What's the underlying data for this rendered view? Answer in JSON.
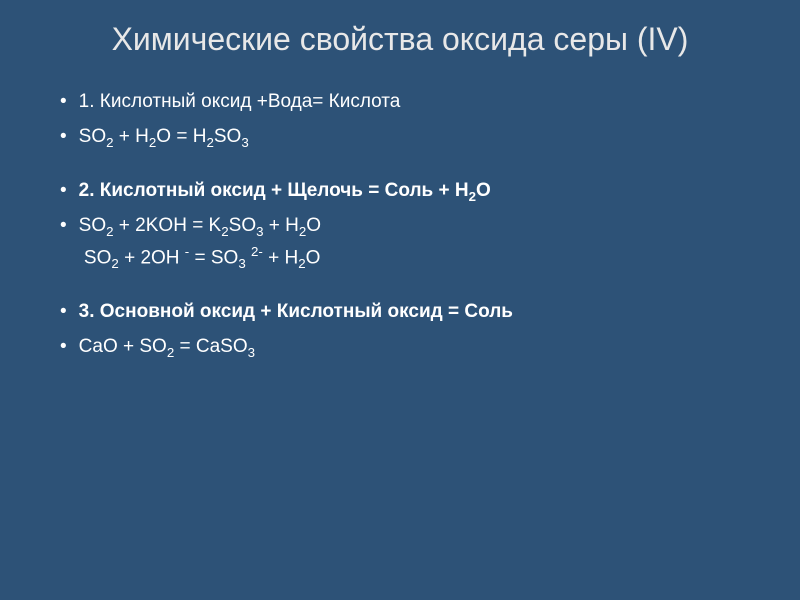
{
  "title": "Химические свойства оксида серы (IV)",
  "items": [
    {
      "text": "1. Кислотный оксид +Вода= Кислота",
      "bold": false
    },
    {
      "text": " SO<sub>2</sub>  + H<sub>2</sub>O = H<sub>2</sub>SO<sub>3</sub>",
      "bold": false
    },
    {
      "text": "2. Кислотный оксид + Щелочь = Соль + Н<sub>2</sub>О",
      "bold": true,
      "spacer_before": true
    },
    {
      "text": " SO<sub>2</sub> + 2KOH = K<sub>2</sub>SO<sub>3</sub> + H<sub>2</sub>O<br>&nbsp;SO<sub>2</sub> + 2OH <sup>-</sup> = SO<sub>3</sub> <sup>2-</sup> + H<sub>2</sub>O",
      "bold": false
    },
    {
      "text": "3. Основной оксид + Кислотный оксид = Соль",
      "bold": true,
      "spacer_before": true
    },
    {
      "text": "CaO + SO<sub>2</sub> = CaSO<sub>3</sub>",
      "bold": false
    }
  ],
  "colors": {
    "background": "#2d5277",
    "text": "#ffffff",
    "title": "#e8e8e8",
    "bullet": "#ffffff"
  },
  "fonts": {
    "title_size": 32,
    "body_size": 19
  }
}
